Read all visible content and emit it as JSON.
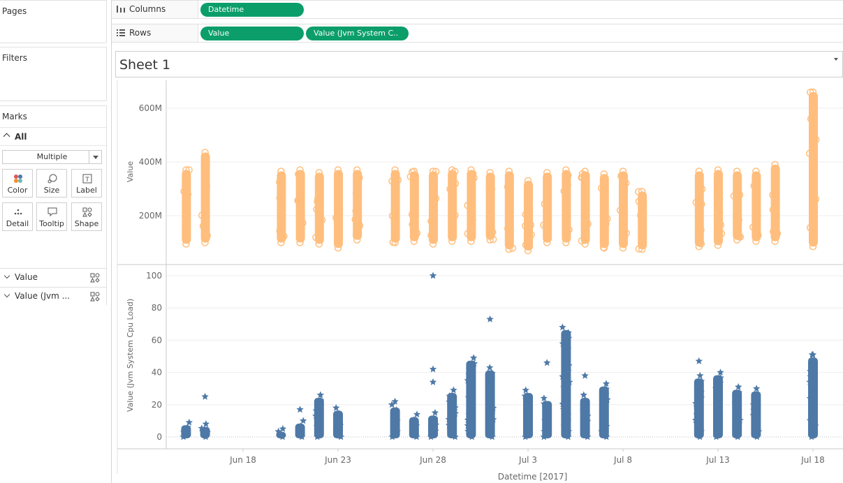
{
  "sidebar": {
    "pages_title": "Pages",
    "filters_title": "Filters",
    "marks": {
      "title": "Marks",
      "all_label": "All",
      "mark_type": "Multiple",
      "tiles": [
        {
          "label": "Color",
          "icon": "color-icon"
        },
        {
          "label": "Size",
          "icon": "size-icon"
        },
        {
          "label": "Label",
          "icon": "label-icon"
        },
        {
          "label": "Detail",
          "icon": "detail-icon"
        },
        {
          "label": "Tooltip",
          "icon": "tooltip-icon"
        },
        {
          "label": "Shape",
          "icon": "shape-icon"
        }
      ],
      "fields": [
        {
          "label": "Value"
        },
        {
          "label": "Value (Jvm ..."
        }
      ]
    }
  },
  "shelves": {
    "columns": {
      "label": "Columns",
      "pills": [
        "Datetime"
      ]
    },
    "rows": {
      "label": "Rows",
      "pills": [
        "Value",
        "Value (Jvm System C.."
      ]
    }
  },
  "sheet": {
    "title": "Sheet 1"
  },
  "colors": {
    "pill": "#0b9e6b",
    "series_value": "#ffbe7d",
    "series_cpu": "#4e79a7"
  },
  "chart_data": [
    {
      "type": "scatter",
      "title": "",
      "xlabel": "",
      "ylabel": "Value",
      "mark": "circle",
      "color": "#ffbe7d",
      "ylim_millions": [
        0,
        700
      ],
      "y_ticks": [
        "200M",
        "400M",
        "600M"
      ],
      "clusters": [
        {
          "x": "2017-06-15",
          "y_range_millions": [
            95,
            370
          ]
        },
        {
          "x": "2017-06-16",
          "y_range_millions": [
            100,
            435
          ]
        },
        {
          "x": "2017-06-20",
          "y_range_millions": [
            100,
            365
          ]
        },
        {
          "x": "2017-06-21",
          "y_range_millions": [
            100,
            370
          ]
        },
        {
          "x": "2017-06-22",
          "y_range_millions": [
            95,
            360
          ]
        },
        {
          "x": "2017-06-23",
          "y_range_millions": [
            80,
            370
          ]
        },
        {
          "x": "2017-06-24",
          "y_range_millions": [
            110,
            370
          ]
        },
        {
          "x": "2017-06-26",
          "y_range_millions": [
            100,
            370
          ]
        },
        {
          "x": "2017-06-27",
          "y_range_millions": [
            105,
            365
          ]
        },
        {
          "x": "2017-06-28",
          "y_range_millions": [
            95,
            365
          ]
        },
        {
          "x": "2017-06-29",
          "y_range_millions": [
            105,
            370
          ]
        },
        {
          "x": "2017-06-30",
          "y_range_millions": [
            105,
            370
          ]
        },
        {
          "x": "2017-07-01",
          "y_range_millions": [
            110,
            360
          ]
        },
        {
          "x": "2017-07-02",
          "y_range_millions": [
            75,
            365
          ]
        },
        {
          "x": "2017-07-03",
          "y_range_millions": [
            70,
            330
          ]
        },
        {
          "x": "2017-07-04",
          "y_range_millions": [
            100,
            360
          ]
        },
        {
          "x": "2017-07-05",
          "y_range_millions": [
            100,
            370
          ]
        },
        {
          "x": "2017-07-06",
          "y_range_millions": [
            95,
            365
          ]
        },
        {
          "x": "2017-07-07",
          "y_range_millions": [
            80,
            355
          ]
        },
        {
          "x": "2017-07-08",
          "y_range_millions": [
            80,
            365
          ]
        },
        {
          "x": "2017-07-09",
          "y_range_millions": [
            75,
            290
          ]
        },
        {
          "x": "2017-07-12",
          "y_range_millions": [
            85,
            365
          ]
        },
        {
          "x": "2017-07-13",
          "y_range_millions": [
            90,
            370
          ]
        },
        {
          "x": "2017-07-14",
          "y_range_millions": [
            110,
            365
          ]
        },
        {
          "x": "2017-07-15",
          "y_range_millions": [
            105,
            365
          ]
        },
        {
          "x": "2017-07-16",
          "y_range_millions": [
            105,
            390
          ]
        },
        {
          "x": "2017-07-18",
          "y_range_millions": [
            85,
            660
          ]
        }
      ]
    },
    {
      "type": "scatter",
      "title": "",
      "xlabel": "Datetime [2017]",
      "ylabel": "Value (Jvm System Cpu Load)",
      "mark": "star",
      "color": "#4e79a7",
      "ylim": [
        0,
        105
      ],
      "y_ticks": [
        0,
        20,
        40,
        60,
        80,
        100
      ],
      "x_ticks": [
        "Jun 18",
        "Jun 23",
        "Jun 28",
        "Jul 3",
        "Jul 8",
        "Jul 13",
        "Jul 18"
      ],
      "clusters": [
        {
          "x": "2017-06-15",
          "y_range": [
            0,
            9
          ]
        },
        {
          "x": "2017-06-16",
          "y_range": [
            0,
            8
          ]
        },
        {
          "x": "2017-06-20",
          "y_range": [
            0,
            5
          ]
        },
        {
          "x": "2017-06-21",
          "y_range": [
            0,
            10
          ]
        },
        {
          "x": "2017-06-22",
          "y_range": [
            0,
            26
          ]
        },
        {
          "x": "2017-06-23",
          "y_range": [
            0,
            18
          ]
        },
        {
          "x": "2017-06-26",
          "y_range": [
            0,
            20
          ]
        },
        {
          "x": "2017-06-27",
          "y_range": [
            0,
            14
          ]
        },
        {
          "x": "2017-06-28",
          "y_range": [
            0,
            15
          ]
        },
        {
          "x": "2017-06-29",
          "y_range": [
            0,
            29
          ]
        },
        {
          "x": "2017-06-30",
          "y_range": [
            0,
            49
          ]
        },
        {
          "x": "2017-07-01",
          "y_range": [
            0,
            43
          ]
        },
        {
          "x": "2017-07-03",
          "y_range": [
            0,
            29
          ]
        },
        {
          "x": "2017-07-04",
          "y_range": [
            0,
            24
          ]
        },
        {
          "x": "2017-07-05",
          "y_range": [
            0,
            68
          ]
        },
        {
          "x": "2017-07-06",
          "y_range": [
            0,
            26
          ]
        },
        {
          "x": "2017-07-07",
          "y_range": [
            0,
            33
          ]
        },
        {
          "x": "2017-07-12",
          "y_range": [
            0,
            38
          ]
        },
        {
          "x": "2017-07-13",
          "y_range": [
            0,
            40
          ]
        },
        {
          "x": "2017-07-14",
          "y_range": [
            0,
            31
          ]
        },
        {
          "x": "2017-07-15",
          "y_range": [
            0,
            30
          ]
        },
        {
          "x": "2017-07-18",
          "y_range": [
            0,
            51
          ]
        }
      ],
      "outliers": [
        {
          "x": "2017-06-16",
          "y": 25
        },
        {
          "x": "2017-06-21",
          "y": 17
        },
        {
          "x": "2017-06-26",
          "y": 22
        },
        {
          "x": "2017-06-28",
          "y": 100
        },
        {
          "x": "2017-06-28",
          "y": 42
        },
        {
          "x": "2017-06-28",
          "y": 34
        },
        {
          "x": "2017-07-01",
          "y": 73
        },
        {
          "x": "2017-07-04",
          "y": 46
        },
        {
          "x": "2017-07-06",
          "y": 38
        },
        {
          "x": "2017-07-12",
          "y": 47
        },
        {
          "x": "2017-07-18",
          "y": 51
        }
      ]
    }
  ]
}
